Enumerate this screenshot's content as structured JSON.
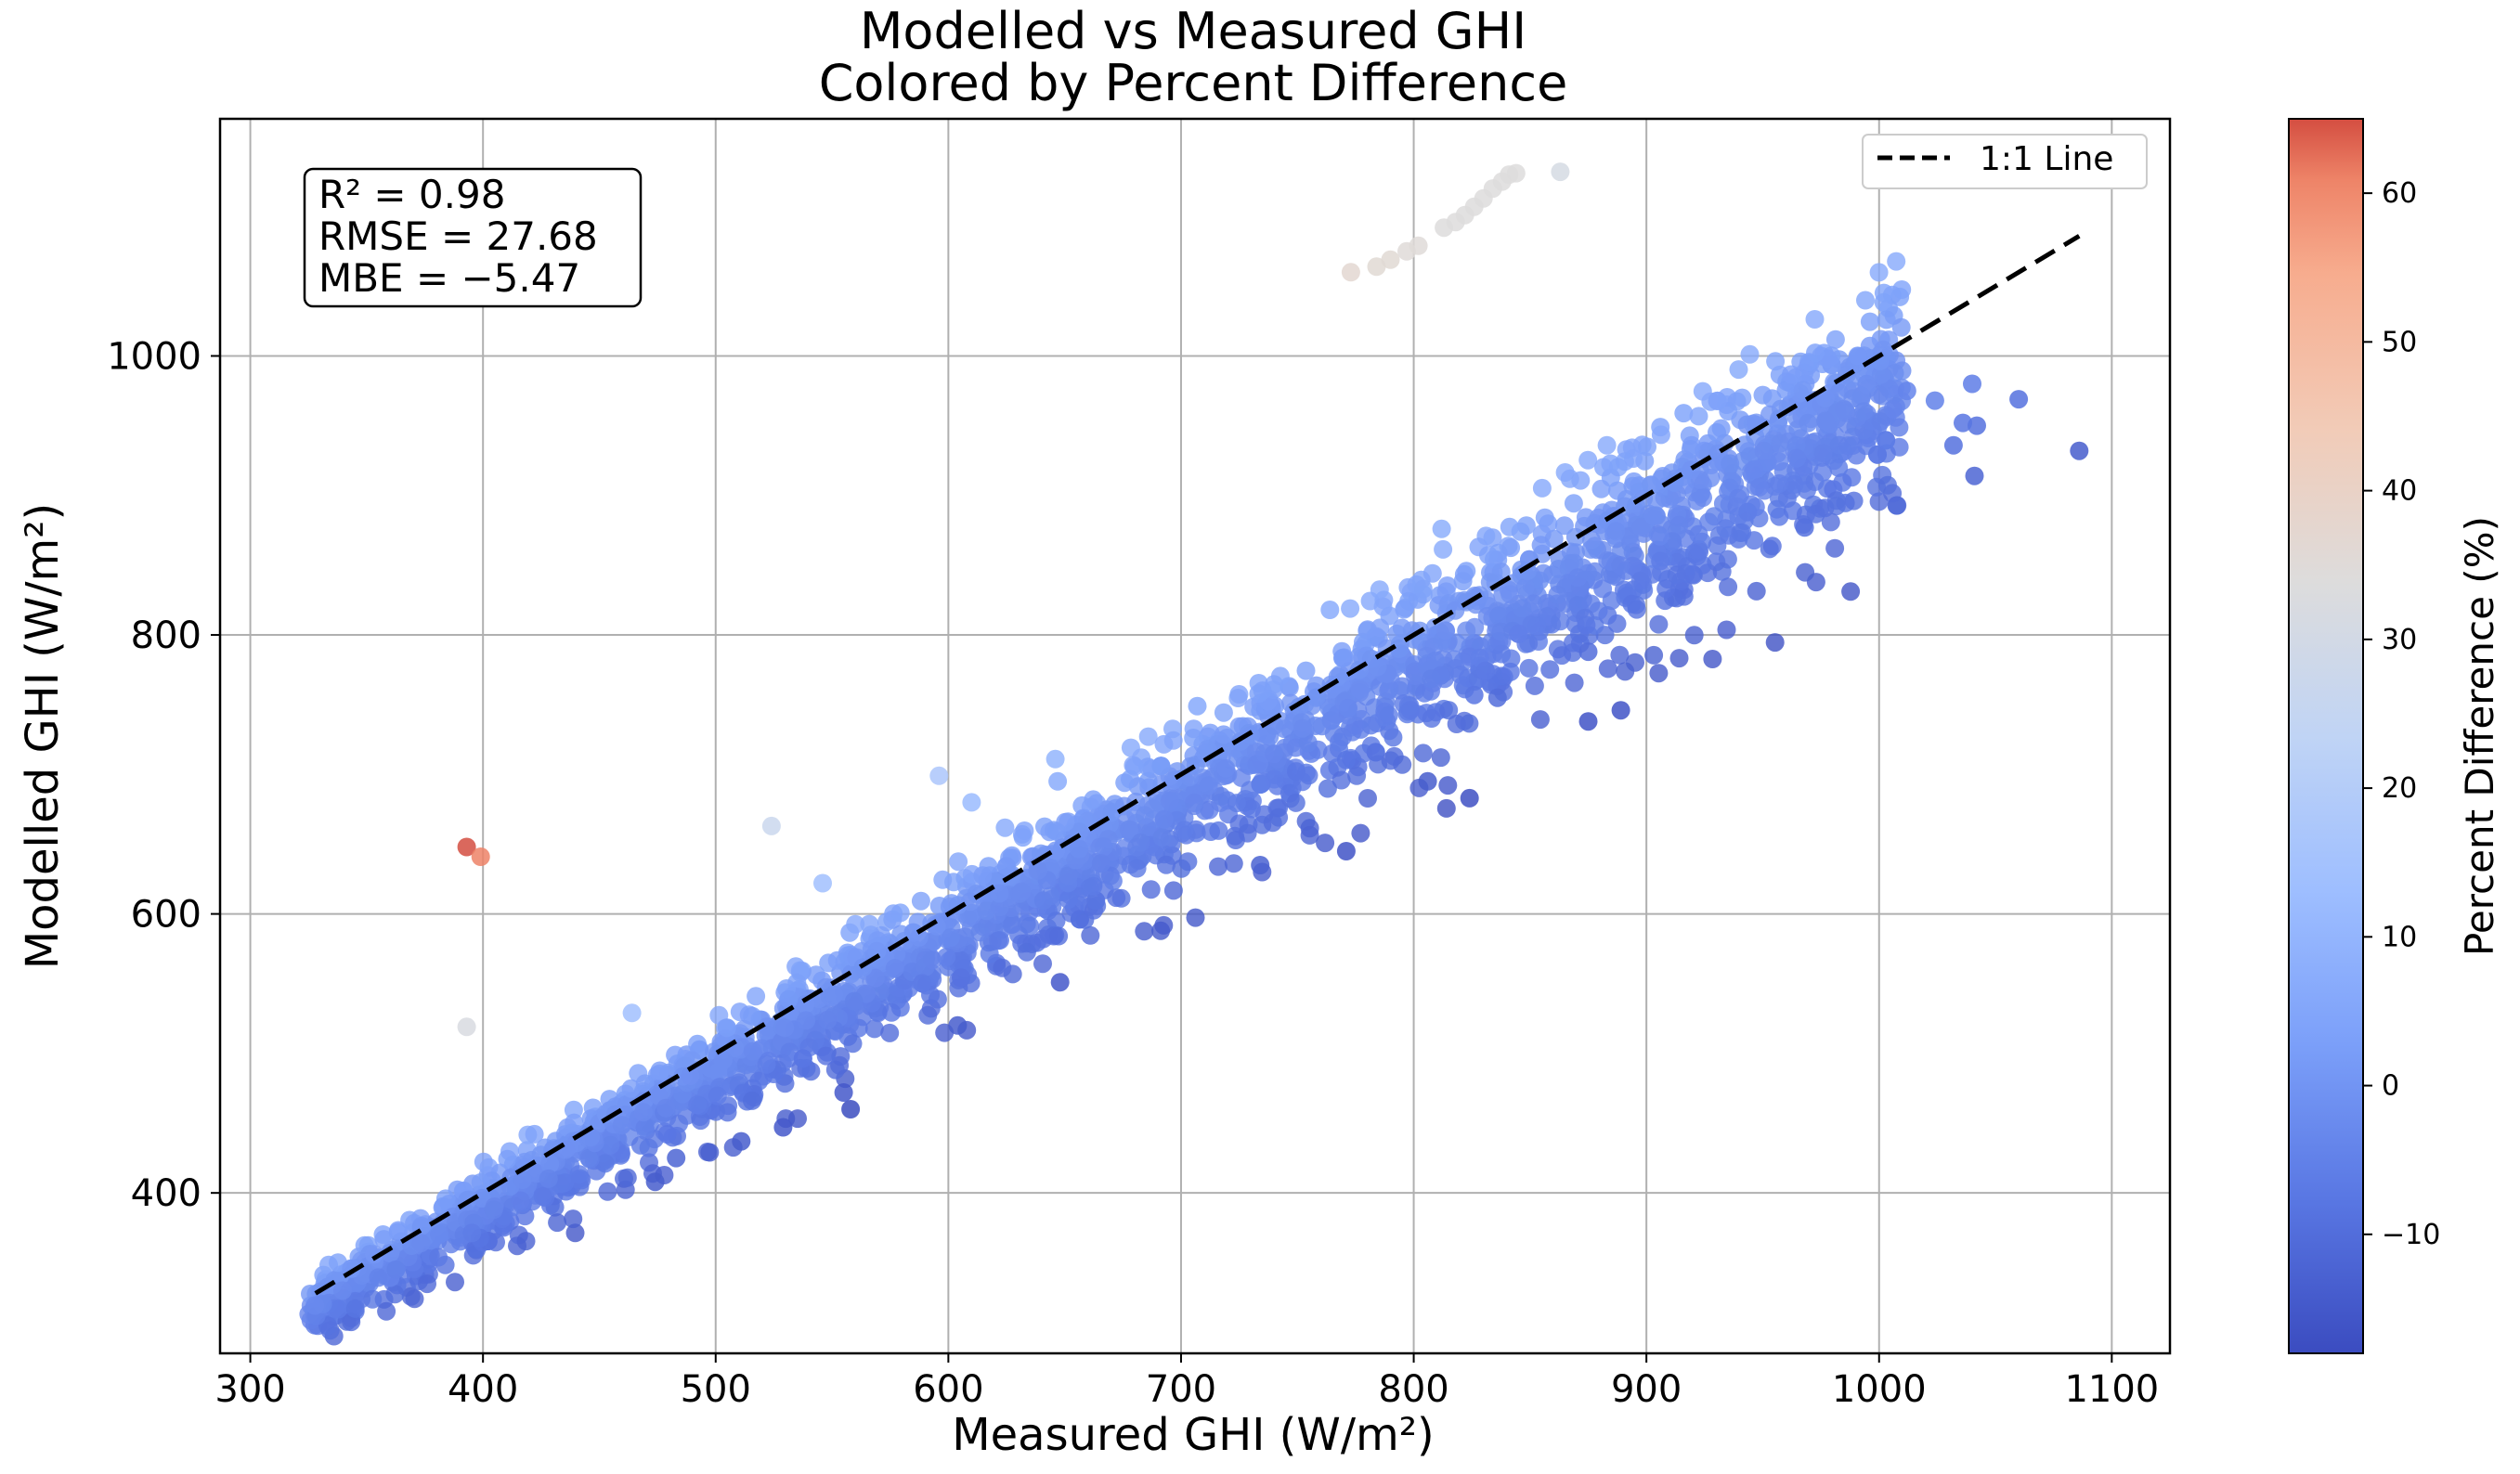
{
  "chart_data": {
    "type": "scatter",
    "title": [
      "Modelled vs Measured GHI",
      "Colored by Percent Difference"
    ],
    "xlabel": "Measured GHI (W/m²)",
    "ylabel": "Modelled GHI (W/m²)",
    "xlim": [
      287,
      1125
    ],
    "ylim": [
      285,
      1170
    ],
    "xticks": [
      300,
      400,
      500,
      600,
      700,
      800,
      900,
      1000,
      1100
    ],
    "yticks": [
      400,
      600,
      800,
      1000
    ],
    "grid": true,
    "colorbar": {
      "label": "Percent Difference (%)",
      "range": [
        -18,
        65
      ],
      "ticks": [
        -10,
        0,
        10,
        20,
        30,
        40,
        50,
        60
      ],
      "tick_labels": [
        "−10",
        "0",
        "10",
        "20",
        "30",
        "40",
        "50",
        "60"
      ],
      "colormap": "coolwarm"
    },
    "stats": [
      "R² = 0.98",
      "RMSE = 27.68",
      "MBE = −5.47"
    ],
    "reference_line": {
      "label": "1:1 Line",
      "style": "dashed",
      "color": "#000000",
      "x": [
        328,
        1086
      ],
      "y": [
        328,
        1086
      ]
    },
    "legend_position": "top-right",
    "series": [
      {
        "name": "main band",
        "description": "dense cloud of points along the 1:1 line, mostly slightly below it",
        "x_range": [
          325,
          1010
        ],
        "approx_points": 2600
      },
      {
        "name": "outliers",
        "points": [
          {
            "x": 393,
            "y": 648,
            "pct": 65
          },
          {
            "x": 399,
            "y": 641,
            "pct": 61
          },
          {
            "x": 393,
            "y": 519,
            "pct": 32
          },
          {
            "x": 524,
            "y": 663,
            "pct": 27
          },
          {
            "x": 464,
            "y": 529,
            "pct": 14
          },
          {
            "x": 546,
            "y": 622,
            "pct": 14
          },
          {
            "x": 596,
            "y": 699,
            "pct": 17
          },
          {
            "x": 610,
            "y": 680,
            "pct": 12
          },
          {
            "x": 646,
            "y": 711,
            "pct": 10
          },
          {
            "x": 647,
            "y": 695,
            "pct": 7
          },
          {
            "x": 707,
            "y": 749,
            "pct": 6
          },
          {
            "x": 764,
            "y": 818,
            "pct": 7
          },
          {
            "x": 812,
            "y": 876,
            "pct": 8
          },
          {
            "x": 906,
            "y": 949,
            "pct": 5
          },
          {
            "x": 916,
            "y": 959,
            "pct": 5
          },
          {
            "x": 875,
            "y": 738,
            "pct": -16
          },
          {
            "x": 889,
            "y": 746,
            "pct": -16
          },
          {
            "x": 875,
            "y": 788,
            "pct": -10
          },
          {
            "x": 824,
            "y": 683,
            "pct": -17
          },
          {
            "x": 806,
            "y": 695,
            "pct": -14
          },
          {
            "x": 771,
            "y": 645,
            "pct": -16
          },
          {
            "x": 734,
            "y": 635,
            "pct": -13
          },
          {
            "x": 648,
            "y": 551,
            "pct": -15
          },
          {
            "x": 604,
            "y": 520,
            "pct": -14
          },
          {
            "x": 558,
            "y": 460,
            "pct": -18
          },
          {
            "x": 555,
            "y": 472,
            "pct": -15
          },
          {
            "x": 529,
            "y": 447,
            "pct": -15
          },
          {
            "x": 511,
            "y": 437,
            "pct": -14
          },
          {
            "x": 474,
            "y": 408,
            "pct": -14
          },
          {
            "x": 483,
            "y": 425,
            "pct": -12
          },
          {
            "x": 1086,
            "y": 932,
            "pct": -14
          },
          {
            "x": 1041,
            "y": 914,
            "pct": -12
          },
          {
            "x": 1042,
            "y": 950,
            "pct": -9
          },
          {
            "x": 1060,
            "y": 969,
            "pct": -9
          },
          {
            "x": 1040,
            "y": 980,
            "pct": -6
          },
          {
            "x": 1036,
            "y": 952,
            "pct": -8
          },
          {
            "x": 1032,
            "y": 936,
            "pct": -9
          },
          {
            "x": 1024,
            "y": 968,
            "pct": -5
          },
          {
            "x": 1012,
            "y": 975,
            "pct": -4
          },
          {
            "x": 1006,
            "y": 962,
            "pct": -4
          },
          {
            "x": 968,
            "y": 877,
            "pct": -9
          },
          {
            "x": 913,
            "y": 843,
            "pct": -8
          },
          {
            "x": 906,
            "y": 853,
            "pct": -6
          },
          {
            "x": 836,
            "y": 755,
            "pct": -10
          },
          {
            "x": 826,
            "y": 757,
            "pct": -8
          }
        ]
      },
      {
        "name": "high cluster",
        "description": "short streak of high-difference points above the band",
        "points": [
          {
            "x": 773,
            "y": 1060,
            "pct": 37
          },
          {
            "x": 784,
            "y": 1064,
            "pct": 36
          },
          {
            "x": 790,
            "y": 1069,
            "pct": 36
          },
          {
            "x": 797,
            "y": 1075,
            "pct": 35
          },
          {
            "x": 802,
            "y": 1079,
            "pct": 35
          },
          {
            "x": 813,
            "y": 1092,
            "pct": 34
          },
          {
            "x": 818,
            "y": 1096,
            "pct": 34
          },
          {
            "x": 822,
            "y": 1101,
            "pct": 34
          },
          {
            "x": 826,
            "y": 1107,
            "pct": 34
          },
          {
            "x": 830,
            "y": 1113,
            "pct": 34
          },
          {
            "x": 834,
            "y": 1120,
            "pct": 34
          },
          {
            "x": 838,
            "y": 1125,
            "pct": 34
          },
          {
            "x": 841,
            "y": 1130,
            "pct": 34
          },
          {
            "x": 844,
            "y": 1131,
            "pct": 34
          },
          {
            "x": 863,
            "y": 1132,
            "pct": 31
          }
        ]
      }
    ]
  }
}
